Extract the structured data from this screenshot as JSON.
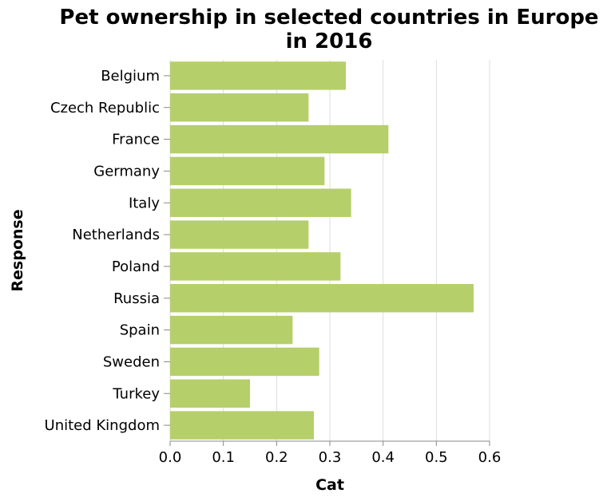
{
  "chart_data": {
    "type": "bar",
    "orientation": "horizontal",
    "title": [
      "Pet ownership in selected countries in Europe",
      "in 2016"
    ],
    "xlabel": "Cat",
    "ylabel": "Response",
    "xlim": [
      0,
      0.6
    ],
    "x_ticks": [
      "0.0",
      "0.1",
      "0.2",
      "0.3",
      "0.4",
      "0.5",
      "0.6"
    ],
    "grid": true,
    "legend": "none",
    "bar_color": "#b5cf6b",
    "categories": [
      "Belgium",
      "Czech Republic",
      "France",
      "Germany",
      "Italy",
      "Netherlands",
      "Poland",
      "Russia",
      "Spain",
      "Sweden",
      "Turkey",
      "United Kingdom"
    ],
    "values": [
      0.33,
      0.26,
      0.41,
      0.29,
      0.34,
      0.26,
      0.32,
      0.57,
      0.23,
      0.28,
      0.15,
      0.27
    ]
  }
}
